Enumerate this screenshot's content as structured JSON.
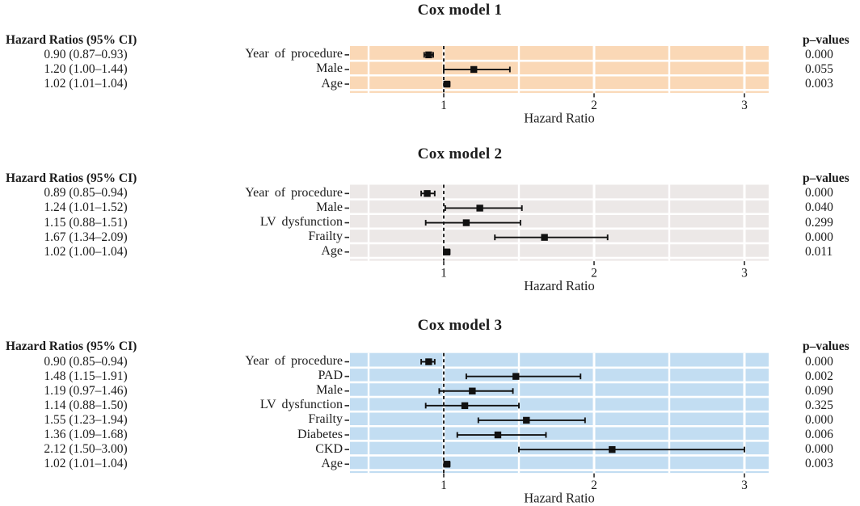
{
  "figure": {
    "left_header": "Hazard Ratios (95% CI)",
    "right_header": "p–values",
    "xlabel": "Hazard Ratio",
    "colors": {
      "grid": "#ffffff",
      "marker": "#111111",
      "reference_line": "#000000",
      "text": "#1c1c1c"
    }
  },
  "chart_data": [
    {
      "type": "forest",
      "title": "Cox model 1",
      "panel_color": "#FAD8B6",
      "xlabel": "Hazard Ratio",
      "xlim": [
        0.38,
        3.16
      ],
      "xticks": [
        1,
        2,
        3
      ],
      "reference_line": 1,
      "grid": "on",
      "rows": [
        {
          "label": "Year of procedure",
          "hr": 0.9,
          "lo": 0.87,
          "hi": 0.93,
          "hr_ci": "0.90 (0.87–0.93)",
          "p": "0.000"
        },
        {
          "label": "Male",
          "hr": 1.2,
          "lo": 1.0,
          "hi": 1.44,
          "hr_ci": "1.20 (1.00–1.44)",
          "p": "0.055"
        },
        {
          "label": "Age",
          "hr": 1.02,
          "lo": 1.01,
          "hi": 1.04,
          "hr_ci": "1.02 (1.01–1.04)",
          "p": "0.003"
        }
      ]
    },
    {
      "type": "forest",
      "title": "Cox model 2",
      "panel_color": "#ECE8E7",
      "xlabel": "Hazard Ratio",
      "xlim": [
        0.38,
        3.16
      ],
      "xticks": [
        1,
        2,
        3
      ],
      "reference_line": 1,
      "grid": "on",
      "rows": [
        {
          "label": "Year of procedure",
          "hr": 0.89,
          "lo": 0.85,
          "hi": 0.94,
          "hr_ci": "0.89 (0.85–0.94)",
          "p": "0.000"
        },
        {
          "label": "Male",
          "hr": 1.24,
          "lo": 1.01,
          "hi": 1.52,
          "hr_ci": "1.24 (1.01–1.52)",
          "p": "0.040"
        },
        {
          "label": "LV dysfunction",
          "hr": 1.15,
          "lo": 0.88,
          "hi": 1.51,
          "hr_ci": "1.15 (0.88–1.51)",
          "p": "0.299"
        },
        {
          "label": "Frailty",
          "hr": 1.67,
          "lo": 1.34,
          "hi": 2.09,
          "hr_ci": "1.67 (1.34–2.09)",
          "p": "0.000"
        },
        {
          "label": "Age",
          "hr": 1.02,
          "lo": 1.0,
          "hi": 1.04,
          "hr_ci": "1.02 (1.00–1.04)",
          "p": "0.011"
        }
      ]
    },
    {
      "type": "forest",
      "title": "Cox model 3",
      "panel_color": "#C2DDF2",
      "xlabel": "Hazard Ratio",
      "xlim": [
        0.38,
        3.16
      ],
      "xticks": [
        1,
        2,
        3
      ],
      "reference_line": 1,
      "grid": "on",
      "rows": [
        {
          "label": "Year of procedure",
          "hr": 0.9,
          "lo": 0.85,
          "hi": 0.94,
          "hr_ci": "0.90 (0.85–0.94)",
          "p": "0.000"
        },
        {
          "label": "PAD",
          "hr": 1.48,
          "lo": 1.15,
          "hi": 1.91,
          "hr_ci": "1.48 (1.15–1.91)",
          "p": "0.002"
        },
        {
          "label": "Male",
          "hr": 1.19,
          "lo": 0.97,
          "hi": 1.46,
          "hr_ci": "1.19 (0.97–1.46)",
          "p": "0.090"
        },
        {
          "label": "LV dysfunction",
          "hr": 1.14,
          "lo": 0.88,
          "hi": 1.5,
          "hr_ci": "1.14 (0.88–1.50)",
          "p": "0.325"
        },
        {
          "label": "Frailty",
          "hr": 1.55,
          "lo": 1.23,
          "hi": 1.94,
          "hr_ci": "1.55 (1.23–1.94)",
          "p": "0.000"
        },
        {
          "label": "Diabetes",
          "hr": 1.36,
          "lo": 1.09,
          "hi": 1.68,
          "hr_ci": "1.36 (1.09–1.68)",
          "p": "0.006"
        },
        {
          "label": "CKD",
          "hr": 2.12,
          "lo": 1.5,
          "hi": 3.0,
          "hr_ci": "2.12 (1.50–3.00)",
          "p": "0.000"
        },
        {
          "label": "Age",
          "hr": 1.02,
          "lo": 1.01,
          "hi": 1.04,
          "hr_ci": "1.02 (1.01–1.04)",
          "p": "0.003"
        }
      ]
    }
  ]
}
